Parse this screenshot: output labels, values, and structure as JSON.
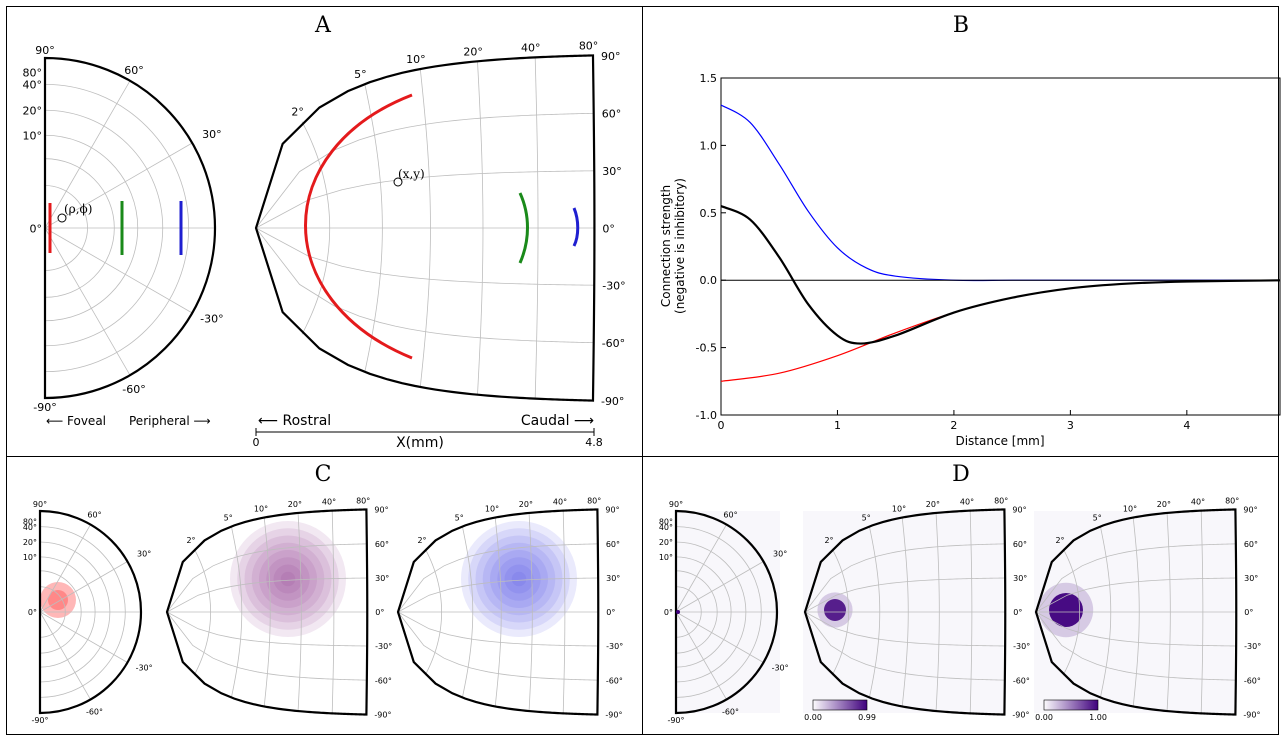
{
  "panels": {
    "a": {
      "letter": "A",
      "retina": {
        "angle_labels": [
          "90°",
          "80°",
          "60°",
          "40°",
          "30°",
          "20°",
          "10°",
          "0°",
          "-30°",
          "-60°",
          "-90°"
        ],
        "point_label": "(ρ,ϕ)",
        "axis_foveal": "⟵ Foveal",
        "axis_peripheral": "Peripheral ⟶"
      },
      "colliculus": {
        "ecc_labels": [
          "2°",
          "5°",
          "10°",
          "20°",
          "40°",
          "80°"
        ],
        "angle_labels": [
          "90°",
          "60°",
          "30°",
          "0°",
          "-30°",
          "-60°",
          "-90°"
        ],
        "point_label": "(x,y)",
        "axis_rostral": "⟵ Rostral",
        "axis_caudal": "Caudal ⟶",
        "axis_label": "X(mm)",
        "axis_min": "0",
        "axis_max": "4.8"
      },
      "stimulus_colors": [
        "#e41a1c",
        "#1a8a1a",
        "#1f1fd0"
      ]
    },
    "b": {
      "letter": "B"
    },
    "c": {
      "letter": "C",
      "retina_angle_labels": [
        "90°",
        "80°",
        "60°",
        "40°",
        "30°",
        "20°",
        "10°",
        "0°",
        "-30°",
        "-60°",
        "-90°"
      ],
      "sc_ecc_labels": [
        "2°",
        "5°",
        "10°",
        "20°",
        "40°",
        "80°"
      ],
      "sc_angle_labels": [
        "90°",
        "60°",
        "30°",
        "0°",
        "-30°",
        "-60°",
        "-90°"
      ],
      "colors": [
        "#ff3030",
        "#8b2f8b",
        "#4040e0"
      ]
    },
    "d": {
      "letter": "D",
      "retina_angle_labels": [
        "90°",
        "80°",
        "60°",
        "40°",
        "30°",
        "20°",
        "10°",
        "0°",
        "-30°",
        "-60°",
        "-90°"
      ],
      "sc_ecc_labels": [
        "2°",
        "5°",
        "10°",
        "20°",
        "40°",
        "80°"
      ],
      "sc_angle_labels": [
        "90°",
        "60°",
        "30°",
        "0°",
        "-30°",
        "-60°",
        "-90°"
      ],
      "colorbars": [
        {
          "min": "0.00",
          "max": "0.99"
        },
        {
          "min": "0.00",
          "max": "1.00"
        }
      ],
      "color": "#3f007d"
    }
  },
  "chart_data": {
    "type": "line",
    "xlabel": "Distance [mm]",
    "ylabel": "Connection strength",
    "ylabel2": "(negative is inhibitory)",
    "xlim": [
      0,
      4.8
    ],
    "ylim": [
      -1.0,
      1.5
    ],
    "xticks": [
      "0",
      "1",
      "2",
      "3",
      "4"
    ],
    "yticks": [
      "1.5",
      "1.0",
      "0.5",
      "0.0",
      "-0.5",
      "-1.0"
    ],
    "series": [
      {
        "color": "#0000ff",
        "x": [
          0,
          0.25,
          0.5,
          0.75,
          1.0,
          1.25,
          1.5,
          2.0,
          2.5,
          3.0,
          4.0,
          4.8
        ],
        "y": [
          1.3,
          1.17,
          0.86,
          0.51,
          0.24,
          0.09,
          0.03,
          0.0,
          0.0,
          0.0,
          0.0,
          0.0
        ]
      },
      {
        "color": "#ff0000",
        "x": [
          0,
          0.5,
          1.0,
          1.5,
          2.0,
          2.5,
          3.0,
          3.5,
          4.0,
          4.5,
          4.8
        ],
        "y": [
          -0.75,
          -0.69,
          -0.56,
          -0.39,
          -0.24,
          -0.13,
          -0.06,
          -0.025,
          -0.01,
          -0.003,
          -0.001
        ]
      },
      {
        "color": "#000000",
        "x": [
          0,
          0.25,
          0.5,
          0.75,
          1.0,
          1.2,
          1.5,
          2.0,
          2.5,
          3.0,
          3.5,
          4.0,
          4.8
        ],
        "y": [
          0.55,
          0.45,
          0.17,
          -0.18,
          -0.41,
          -0.47,
          -0.41,
          -0.24,
          -0.13,
          -0.06,
          -0.025,
          -0.01,
          -0.001
        ]
      },
      {
        "color": "#000000",
        "x": [
          0,
          4.8
        ],
        "y": [
          0,
          0
        ]
      }
    ]
  }
}
